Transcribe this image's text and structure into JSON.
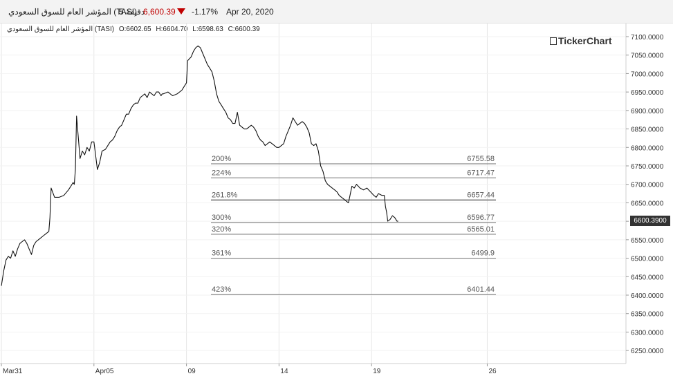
{
  "header": {
    "instrument": "المؤشر العام للسوق السعودي (TASI)",
    "interval": "5 دقيقة",
    "price": "6,600.39",
    "change": "-1.17%",
    "date": "Apr 20, 2020",
    "colors": {
      "down": "#c00000"
    }
  },
  "ohlc": {
    "label": "المؤشر العام للسوق السعودي (TASI)",
    "open": "O:6602.65",
    "high": "H:6604.70",
    "low": "L:6598.63",
    "close": "C:6600.39"
  },
  "logo": {
    "text": "TickerChart"
  },
  "last_price_label": "6600.3900",
  "chart_data": {
    "type": "line",
    "ylim": [
      6225,
      7120
    ],
    "y_ticks": [
      "7100.0000",
      "7050.0000",
      "7000.0000",
      "6950.0000",
      "6900.0000",
      "6850.0000",
      "6800.0000",
      "6750.0000",
      "6700.0000",
      "6650.0000",
      "6600.0000",
      "6550.0000",
      "6500.0000",
      "6450.0000",
      "6400.0000",
      "6350.0000",
      "6300.0000",
      "6250.0000"
    ],
    "x_ticks": [
      {
        "label": "Mar31",
        "x": 0
      },
      {
        "label": "Apr05",
        "x": 4
      },
      {
        "label": "09",
        "x": 8
      },
      {
        "label": "14",
        "x": 12
      },
      {
        "label": "19",
        "x": 16
      },
      {
        "label": "26",
        "x": 21
      }
    ],
    "x_range": [
      0,
      23.6
    ],
    "grid": true,
    "series": [
      {
        "values": [
          [
            0.0,
            6425
          ],
          [
            0.1,
            6465
          ],
          [
            0.2,
            6495
          ],
          [
            0.3,
            6505
          ],
          [
            0.4,
            6500
          ],
          [
            0.5,
            6520
          ],
          [
            0.6,
            6505
          ],
          [
            0.7,
            6525
          ],
          [
            0.8,
            6540
          ],
          [
            0.9,
            6545
          ],
          [
            1.0,
            6550
          ],
          [
            1.1,
            6540
          ],
          [
            1.2,
            6525
          ],
          [
            1.3,
            6510
          ],
          [
            1.4,
            6535
          ],
          [
            1.5,
            6545
          ],
          [
            1.6,
            6550
          ],
          [
            1.7,
            6555
          ],
          [
            1.8,
            6560
          ],
          [
            1.9,
            6565
          ],
          [
            2.0,
            6570
          ],
          [
            2.05,
            6572
          ],
          [
            2.1,
            6610
          ],
          [
            2.15,
            6690
          ],
          [
            2.3,
            6665
          ],
          [
            2.5,
            6665
          ],
          [
            2.7,
            6670
          ],
          [
            2.9,
            6685
          ],
          [
            3.0,
            6695
          ],
          [
            3.1,
            6705
          ],
          [
            3.15,
            6700
          ],
          [
            3.2,
            6740
          ],
          [
            3.25,
            6885
          ],
          [
            3.4,
            6770
          ],
          [
            3.5,
            6790
          ],
          [
            3.6,
            6780
          ],
          [
            3.7,
            6800
          ],
          [
            3.8,
            6790
          ],
          [
            3.9,
            6815
          ],
          [
            4.0,
            6815
          ],
          [
            4.05,
            6790
          ],
          [
            4.15,
            6740
          ],
          [
            4.25,
            6760
          ],
          [
            4.35,
            6790
          ],
          [
            4.5,
            6795
          ],
          [
            4.6,
            6805
          ],
          [
            4.7,
            6815
          ],
          [
            4.8,
            6820
          ],
          [
            4.9,
            6830
          ],
          [
            5.0,
            6845
          ],
          [
            5.1,
            6855
          ],
          [
            5.2,
            6860
          ],
          [
            5.3,
            6875
          ],
          [
            5.4,
            6890
          ],
          [
            5.5,
            6890
          ],
          [
            5.6,
            6905
          ],
          [
            5.7,
            6915
          ],
          [
            5.8,
            6920
          ],
          [
            5.9,
            6920
          ],
          [
            6.0,
            6935
          ],
          [
            6.1,
            6940
          ],
          [
            6.2,
            6945
          ],
          [
            6.3,
            6935
          ],
          [
            6.4,
            6950
          ],
          [
            6.5,
            6945
          ],
          [
            6.6,
            6940
          ],
          [
            6.7,
            6950
          ],
          [
            6.8,
            6950
          ],
          [
            6.9,
            6940
          ],
          [
            6.95,
            6945
          ],
          [
            7.0,
            6945
          ],
          [
            7.2,
            6950
          ],
          [
            7.4,
            6940
          ],
          [
            7.6,
            6945
          ],
          [
            7.8,
            6955
          ],
          [
            8.0,
            6975
          ],
          [
            8.05,
            7035
          ],
          [
            8.2,
            7045
          ],
          [
            8.3,
            7060
          ],
          [
            8.4,
            7070
          ],
          [
            8.5,
            7075
          ],
          [
            8.6,
            7070
          ],
          [
            8.7,
            7055
          ],
          [
            8.8,
            7040
          ],
          [
            8.9,
            7025
          ],
          [
            9.0,
            7015
          ],
          [
            9.1,
            7005
          ],
          [
            9.2,
            6980
          ],
          [
            9.3,
            6945
          ],
          [
            9.4,
            6925
          ],
          [
            9.5,
            6915
          ],
          [
            9.6,
            6905
          ],
          [
            9.7,
            6895
          ],
          [
            9.8,
            6880
          ],
          [
            9.9,
            6875
          ],
          [
            10.0,
            6865
          ],
          [
            10.1,
            6865
          ],
          [
            10.2,
            6895
          ],
          [
            10.3,
            6860
          ],
          [
            10.4,
            6855
          ],
          [
            10.5,
            6850
          ],
          [
            10.6,
            6850
          ],
          [
            10.7,
            6855
          ],
          [
            10.8,
            6860
          ],
          [
            10.9,
            6855
          ],
          [
            11.0,
            6845
          ],
          [
            11.1,
            6830
          ],
          [
            11.2,
            6820
          ],
          [
            11.3,
            6815
          ],
          [
            11.4,
            6805
          ],
          [
            11.5,
            6810
          ],
          [
            11.6,
            6815
          ],
          [
            11.7,
            6810
          ],
          [
            11.8,
            6805
          ],
          [
            11.9,
            6800
          ],
          [
            12.0,
            6800
          ],
          [
            12.1,
            6805
          ],
          [
            12.2,
            6810
          ],
          [
            12.3,
            6830
          ],
          [
            12.4,
            6845
          ],
          [
            12.5,
            6860
          ],
          [
            12.6,
            6880
          ],
          [
            12.7,
            6870
          ],
          [
            12.8,
            6860
          ],
          [
            12.9,
            6865
          ],
          [
            13.0,
            6870
          ],
          [
            13.1,
            6865
          ],
          [
            13.2,
            6855
          ],
          [
            13.3,
            6840
          ],
          [
            13.4,
            6810
          ],
          [
            13.5,
            6805
          ],
          [
            13.6,
            6810
          ],
          [
            13.7,
            6790
          ],
          [
            13.8,
            6750
          ],
          [
            13.9,
            6735
          ],
          [
            14.0,
            6710
          ],
          [
            14.1,
            6700
          ],
          [
            14.2,
            6695
          ],
          [
            14.3,
            6690
          ],
          [
            14.4,
            6685
          ],
          [
            14.5,
            6680
          ],
          [
            14.6,
            6670
          ],
          [
            14.7,
            6665
          ],
          [
            14.8,
            6660
          ],
          [
            14.9,
            6655
          ],
          [
            15.0,
            6650
          ],
          [
            15.15,
            6695
          ],
          [
            15.25,
            6690
          ],
          [
            15.35,
            6700
          ],
          [
            15.5,
            6690
          ],
          [
            15.65,
            6685
          ],
          [
            15.8,
            6690
          ],
          [
            15.95,
            6680
          ],
          [
            16.1,
            6670
          ],
          [
            16.2,
            6665
          ],
          [
            16.3,
            6675
          ],
          [
            16.45,
            6670
          ],
          [
            16.55,
            6670
          ],
          [
            16.6,
            6640
          ],
          [
            16.65,
            6625
          ],
          [
            16.7,
            6600
          ],
          [
            16.8,
            6605
          ],
          [
            16.9,
            6615
          ],
          [
            17.0,
            6610
          ],
          [
            17.1,
            6600
          ],
          [
            17.15,
            6600.39
          ]
        ]
      }
    ],
    "levels": [
      {
        "pct": "200%",
        "value": "6755.58",
        "y": 6755.58
      },
      {
        "pct": "224%",
        "value": "6717.47",
        "y": 6717.47
      },
      {
        "pct": "261.8%",
        "value": "6657.44",
        "y": 6657.44
      },
      {
        "pct": "300%",
        "value": "6596.77",
        "y": 6596.77
      },
      {
        "pct": "320%",
        "value": "6565.01",
        "y": 6565.01
      },
      {
        "pct": "361%",
        "value": "6499.9",
        "y": 6499.9
      },
      {
        "pct": "423%",
        "value": "6401.44",
        "y": 6401.44
      }
    ],
    "last_value": 6600.39,
    "colors": {
      "line": "#111111",
      "grid": "#e6e6e6",
      "level": "#8a8a8a",
      "level_text": "#555555",
      "axis_text": "#333333"
    }
  }
}
